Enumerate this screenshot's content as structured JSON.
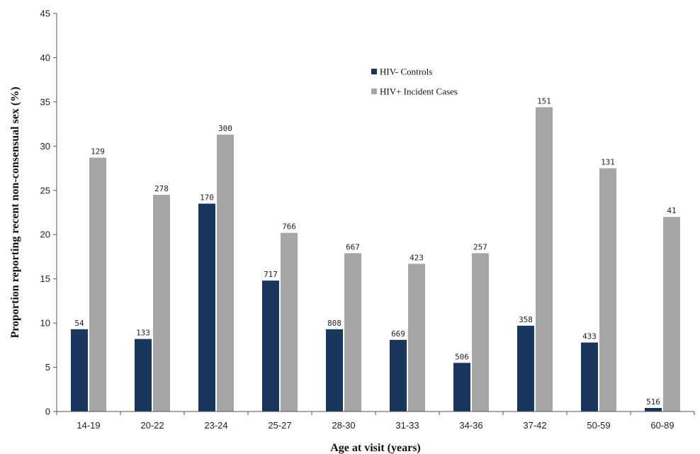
{
  "chart_data": {
    "type": "bar",
    "title": "",
    "xlabel": "Age at visit (years)",
    "ylabel": "Proportion reporting recent non-consensual sex (%)",
    "ylim": [
      0,
      45
    ],
    "yticks": [
      0,
      5,
      10,
      15,
      20,
      25,
      30,
      35,
      40,
      45
    ],
    "grid": false,
    "legend_position": "top-center",
    "categories": [
      "14-19",
      "20-22",
      "23-24",
      "25-27",
      "28-30",
      "31-33",
      "34-36",
      "37-42",
      "50-59",
      "60-89"
    ],
    "series": [
      {
        "name": "HIV- Controls",
        "color": "#1b365d",
        "values": [
          9.3,
          8.2,
          23.5,
          14.8,
          9.3,
          8.1,
          5.5,
          9.7,
          7.8,
          0.4
        ],
        "labels": [
          "54",
          "133",
          "170",
          "717",
          "808",
          "669",
          "506",
          "358",
          "433",
          "516"
        ]
      },
      {
        "name": "HIV+ Incident Cases",
        "color": "#a6a6a6",
        "values": [
          28.7,
          24.5,
          31.3,
          20.2,
          17.9,
          16.7,
          17.9,
          34.4,
          27.5,
          22.0
        ],
        "labels": [
          "129",
          "278",
          "300",
          "766",
          "667",
          "423",
          "257",
          "151",
          "131",
          "41"
        ]
      }
    ]
  }
}
